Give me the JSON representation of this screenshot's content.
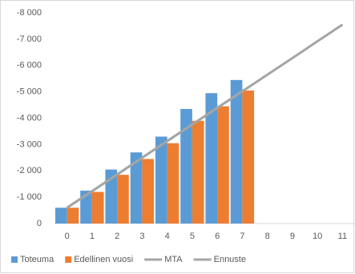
{
  "chart_data": {
    "type": "bar",
    "categories": [
      "0",
      "1",
      "2",
      "3",
      "4",
      "5",
      "6",
      "7",
      "8",
      "9",
      "10",
      "11"
    ],
    "series": [
      {
        "name": "Toteuma",
        "type": "bar",
        "color": "#5b9bd5",
        "values": [
          -600,
          -1250,
          -2050,
          -2700,
          -3300,
          -4350,
          -4950,
          -5450,
          null,
          null,
          null,
          null
        ]
      },
      {
        "name": "Edellinen vuosi",
        "type": "bar",
        "color": "#ed7d31",
        "values": [
          -600,
          -1200,
          -1850,
          -2450,
          -3050,
          -3900,
          -4450,
          -5050,
          null,
          null,
          null,
          null
        ]
      },
      {
        "name": "MTA",
        "type": "line",
        "color": "#a5a5a5",
        "values": [
          -600,
          -1230,
          -1860,
          -2500,
          -3130,
          -3760,
          -4390,
          -5020,
          null,
          null,
          null,
          null
        ]
      },
      {
        "name": "Ennuste",
        "type": "line",
        "color": "#a5a5a5",
        "values": [
          -600,
          -1230,
          -1860,
          -2500,
          -3130,
          -3760,
          -4390,
          -5020,
          -5650,
          -6280,
          -6920,
          -7550
        ]
      }
    ],
    "ylim": [
      0,
      -8000
    ],
    "yticks": [
      0,
      {
        "value": -1000,
        "label": "-1 000"
      },
      {
        "value": -2000,
        "label": "-2 000"
      },
      {
        "value": -3000,
        "label": "-3 000"
      },
      {
        "value": -4000,
        "label": "-4 000"
      },
      {
        "value": -5000,
        "label": "-5 000"
      },
      {
        "value": -6000,
        "label": "-6 000"
      },
      {
        "value": -7000,
        "label": "-7 000"
      },
      {
        "value": -8000,
        "label": "-8 000"
      }
    ],
    "grid": false,
    "legend": "bottom"
  }
}
